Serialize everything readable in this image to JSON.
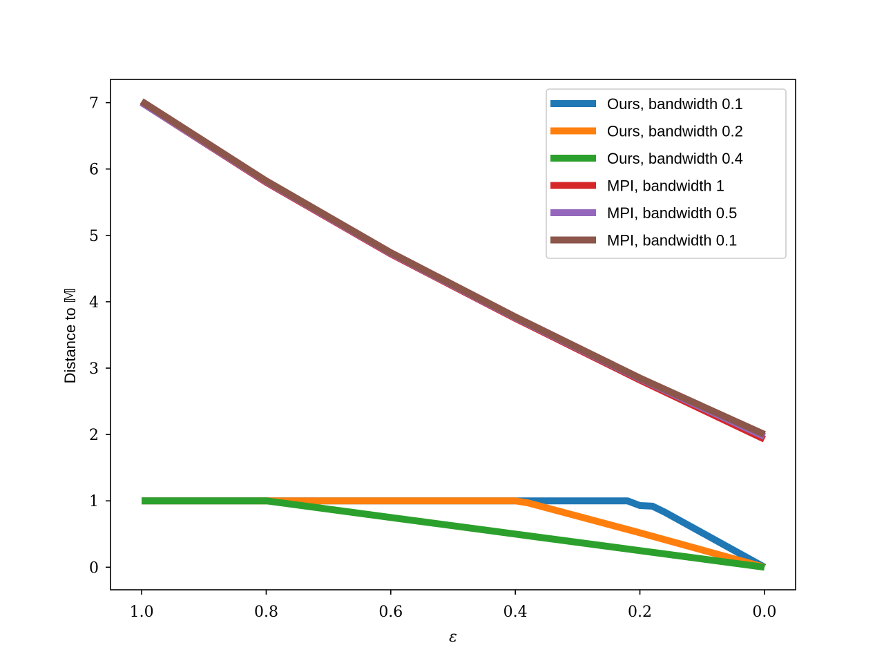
{
  "chart_data": {
    "type": "line",
    "title": "",
    "xlabel": "ε",
    "ylabel": "Distance to 𝕄",
    "xlim": [
      1.05,
      -0.05
    ],
    "ylim": [
      -0.34,
      7.35
    ],
    "x_inverted": true,
    "xticks": [
      1.0,
      0.8,
      0.6,
      0.4,
      0.2,
      0.0
    ],
    "xtick_labels": [
      "1.0",
      "0.8",
      "0.6",
      "0.4",
      "0.2",
      "0.0"
    ],
    "yticks": [
      0,
      1,
      2,
      3,
      4,
      5,
      6,
      7
    ],
    "ytick_labels": [
      "0",
      "1",
      "2",
      "3",
      "4",
      "5",
      "6",
      "7"
    ],
    "grid": false,
    "legend_position": "top-right",
    "series": [
      {
        "name": "Ours, bandwidth 0.1",
        "color": "#1f77b4",
        "x": [
          1.0,
          0.8,
          0.6,
          0.4,
          0.22,
          0.2,
          0.18,
          0.16,
          0.0
        ],
        "y": [
          1.0,
          1.0,
          1.0,
          1.0,
          1.0,
          0.93,
          0.92,
          0.83,
          0.0
        ]
      },
      {
        "name": "Ours, bandwidth 0.2",
        "color": "#ff7f0e",
        "x": [
          1.0,
          0.8,
          0.6,
          0.4,
          0.38,
          0.2,
          0.0
        ],
        "y": [
          1.0,
          1.0,
          1.0,
          1.0,
          0.97,
          0.52,
          0.0
        ]
      },
      {
        "name": "Ours, bandwidth 0.4",
        "color": "#2ca02c",
        "x": [
          1.0,
          0.8,
          0.6,
          0.4,
          0.2,
          0.0
        ],
        "y": [
          1.0,
          1.0,
          0.75,
          0.5,
          0.25,
          0.0
        ]
      },
      {
        "name": "MPI, bandwidth 1",
        "color": "#d62728",
        "x": [
          1.0,
          0.8,
          0.6,
          0.4,
          0.2,
          0.0
        ],
        "y": [
          7.0,
          5.8,
          4.72,
          3.75,
          2.82,
          1.93
        ]
      },
      {
        "name": "MPI, bandwidth 0.5",
        "color": "#9467bd",
        "x": [
          1.0,
          0.8,
          0.6,
          0.4,
          0.2,
          0.0
        ],
        "y": [
          7.0,
          5.81,
          4.73,
          3.76,
          2.84,
          1.97
        ]
      },
      {
        "name": "MPI, bandwidth 0.1",
        "color": "#8c564b",
        "x": [
          1.0,
          0.8,
          0.6,
          0.4,
          0.2,
          0.0
        ],
        "y": [
          7.02,
          5.82,
          4.74,
          3.77,
          2.85,
          2.0
        ]
      }
    ]
  }
}
